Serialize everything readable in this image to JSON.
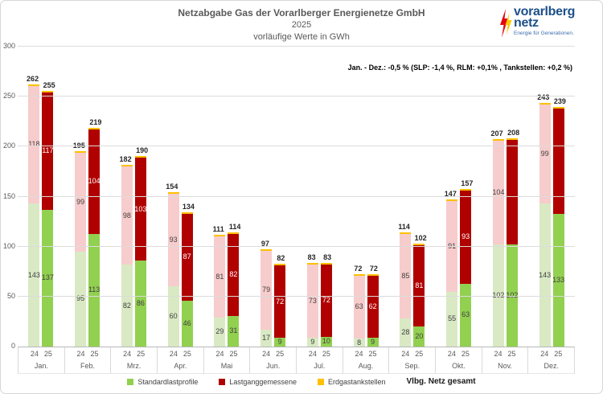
{
  "chart_data": {
    "type": "bar",
    "stacked": true,
    "title": "Netzabgabe Gas der Vorarlberger Energienetze GmbH",
    "subtitle": "2025",
    "unit_note": "vorläufige Werte in GWh",
    "annotation": "Jan. - Dez.: -0,5 % (SLP: -1,4 %, RLM: +0,1% , Tankstellen: +0,2 %)",
    "ylim": [
      0,
      300
    ],
    "yticks": [
      0,
      50,
      100,
      150,
      200,
      250,
      300
    ],
    "grid": true,
    "legend_position": "bottom",
    "year_series": [
      "24",
      "25"
    ],
    "segments": [
      {
        "key": "slp",
        "label": "Standardlastprofile",
        "color_24": "#d9e9c4",
        "color_25": "#92d050",
        "legend_color": "#92d050"
      },
      {
        "key": "rlm",
        "label": "Lastganggemessene",
        "color_24": "#f7cccc",
        "color_25": "#b00000",
        "legend_color": "#b00000"
      },
      {
        "key": "tank",
        "label": "Erdgastankstellen",
        "color_24": "#ffc000",
        "color_25": "#ffc000",
        "legend_color": "#ffc000"
      }
    ],
    "total_legend_label": "Vlbg. Netz gesamt",
    "months": [
      {
        "name": "Jan.",
        "bars": [
          {
            "year": "24",
            "slp": 143,
            "rlm": 118,
            "tank": 1,
            "total": 262,
            "rlm_label": true
          },
          {
            "year": "25",
            "slp": 137,
            "rlm": 117,
            "tank": 1,
            "total": 255,
            "rlm_label": true
          }
        ]
      },
      {
        "name": "Feb.",
        "bars": [
          {
            "year": "24",
            "slp": 95,
            "rlm": 99,
            "tank": 1,
            "total": 195,
            "rlm_label": true
          },
          {
            "year": "25",
            "slp": 113,
            "rlm": 104,
            "tank": 2,
            "total": 219,
            "rlm_label": true
          }
        ]
      },
      {
        "name": "Mrz.",
        "bars": [
          {
            "year": "24",
            "slp": 82,
            "rlm": 98,
            "tank": 2,
            "total": 182,
            "rlm_label": true
          },
          {
            "year": "25",
            "slp": 86,
            "rlm": 103,
            "tank": 1,
            "total": 190,
            "rlm_label": true
          }
        ]
      },
      {
        "name": "Apr.",
        "bars": [
          {
            "year": "24",
            "slp": 60,
            "rlm": 93,
            "tank": 1,
            "total": 154,
            "rlm_label": true
          },
          {
            "year": "25",
            "slp": 46,
            "rlm": 87,
            "tank": 1,
            "total": 134,
            "rlm_label": true
          }
        ]
      },
      {
        "name": "Mai",
        "bars": [
          {
            "year": "24",
            "slp": 29,
            "rlm": 81,
            "tank": 1,
            "total": 111,
            "rlm_label": true
          },
          {
            "year": "25",
            "slp": 31,
            "rlm": 82,
            "tank": 1,
            "total": 114,
            "rlm_label": true
          }
        ]
      },
      {
        "name": "Jun.",
        "bars": [
          {
            "year": "24",
            "slp": 17,
            "rlm": 79,
            "tank": 1,
            "total": 97,
            "rlm_label": true
          },
          {
            "year": "25",
            "slp": 9,
            "rlm": 72,
            "tank": 1,
            "total": 82,
            "rlm_label": true
          }
        ]
      },
      {
        "name": "Jul.",
        "bars": [
          {
            "year": "24",
            "slp": 9,
            "rlm": 73,
            "tank": 1,
            "total": 83,
            "rlm_label": true
          },
          {
            "year": "25",
            "slp": 10,
            "rlm": 72,
            "tank": 1,
            "total": 83,
            "rlm_label": true
          }
        ]
      },
      {
        "name": "Aug.",
        "bars": [
          {
            "year": "24",
            "slp": 8,
            "rlm": 63,
            "tank": 1,
            "total": 72,
            "rlm_label": true
          },
          {
            "year": "25",
            "slp": 9,
            "rlm": 62,
            "tank": 1,
            "total": 72,
            "rlm_label": true
          }
        ]
      },
      {
        "name": "Sep.",
        "bars": [
          {
            "year": "24",
            "slp": 28,
            "rlm": 85,
            "tank": 1,
            "total": 114,
            "rlm_label": true
          },
          {
            "year": "25",
            "slp": 20,
            "rlm": 81,
            "tank": 1,
            "total": 102,
            "rlm_label": true
          }
        ]
      },
      {
        "name": "Okt.",
        "bars": [
          {
            "year": "24",
            "slp": 55,
            "rlm": 91,
            "tank": 1,
            "total": 147,
            "rlm_label": true
          },
          {
            "year": "25",
            "slp": 63,
            "rlm": 93,
            "tank": 1,
            "total": 157,
            "rlm_label": true
          }
        ]
      },
      {
        "name": "Nov.",
        "bars": [
          {
            "year": "24",
            "slp": 102,
            "rlm": 104,
            "tank": 1,
            "total": 207,
            "rlm_label": true
          },
          {
            "year": "25",
            "slp": 102,
            "rlm": 105,
            "tank": 1,
            "total": 208,
            "rlm_label": false
          }
        ]
      },
      {
        "name": "Dez.",
        "bars": [
          {
            "year": "24",
            "slp": 143,
            "rlm": 99,
            "tank": 1,
            "total": 243,
            "rlm_label": true
          },
          {
            "year": "25",
            "slp": 133,
            "rlm": 105,
            "tank": 1,
            "total": 239,
            "rlm_label": false
          }
        ]
      }
    ]
  },
  "logo": {
    "line1": "vorarlberg",
    "line2": "netz",
    "tagline": "Energie für Generationen.",
    "brand_blue": "#1d5089",
    "bolt_red": "#e30613",
    "bolt_yellow": "#ffcc00"
  },
  "colors": {
    "title_gray": "#595959",
    "gridline": "#dcdcdc",
    "axis_line": "#b7b7b7"
  }
}
